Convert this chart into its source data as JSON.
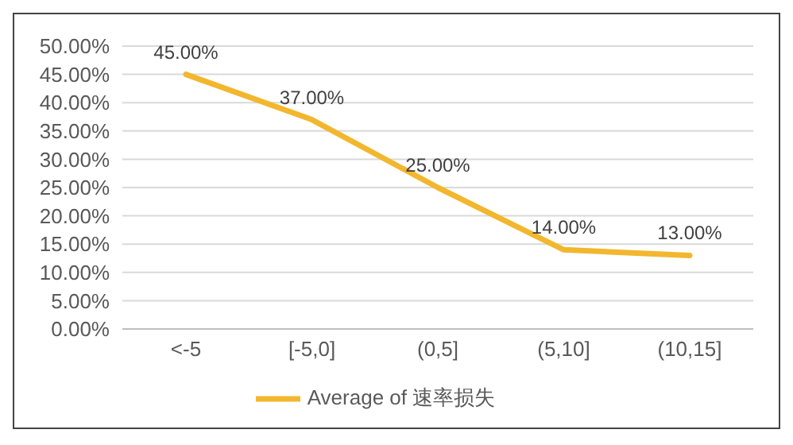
{
  "chart_data": {
    "type": "line",
    "categories": [
      "<-5",
      "[-5,0]",
      "(0,5]",
      "(5,10]",
      "(10,15]"
    ],
    "series": [
      {
        "name": "Average of 速率损失",
        "color": "#f2b72e",
        "values": [
          45,
          37,
          25,
          14,
          13
        ],
        "value_labels": [
          "45.00%",
          "37.00%",
          "25.00%",
          "14.00%",
          "13.00%"
        ]
      }
    ],
    "ylim": [
      0,
      50
    ],
    "yticks": [
      {
        "value": 0,
        "label": "0.00%"
      },
      {
        "value": 5,
        "label": "5.00%"
      },
      {
        "value": 10,
        "label": "10.00%"
      },
      {
        "value": 15,
        "label": "15.00%"
      },
      {
        "value": 20,
        "label": "20.00%"
      },
      {
        "value": 25,
        "label": "25.00%"
      },
      {
        "value": 30,
        "label": "30.00%"
      },
      {
        "value": 35,
        "label": "35.00%"
      },
      {
        "value": 40,
        "label": "40.00%"
      },
      {
        "value": 45,
        "label": "45.00%"
      },
      {
        "value": 50,
        "label": "50.00%"
      }
    ],
    "grid": "y",
    "legend": "bottom",
    "marker": "none",
    "line_style": "solid"
  }
}
